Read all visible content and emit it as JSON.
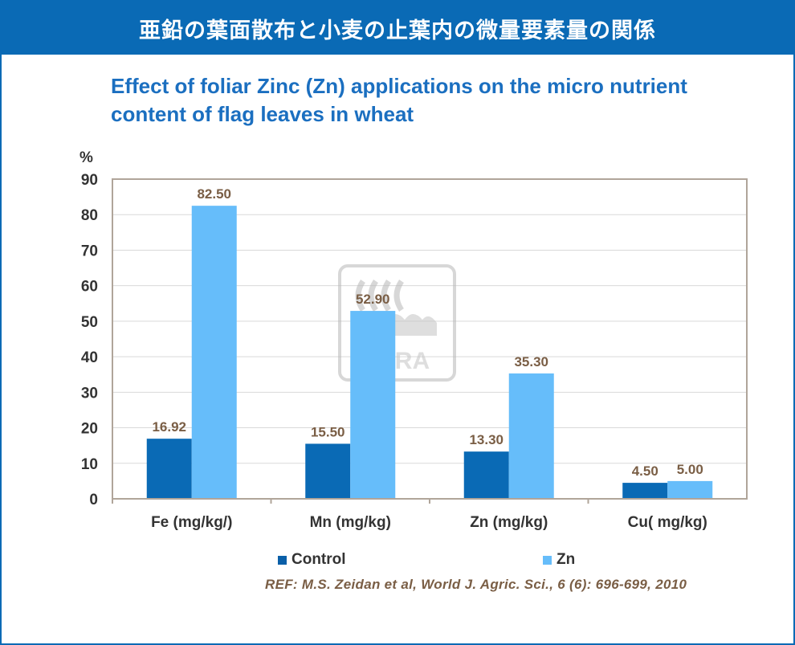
{
  "banner": {
    "title": "亜鉛の葉面散布と小麦の止葉内の微量要素量の関係"
  },
  "chart_data": {
    "type": "bar",
    "title": "Effect of foliar Zinc (Zn) applications on the micro nutrient content of flag leaves in wheat",
    "ylabel": "%",
    "ylim": [
      0,
      90
    ],
    "yticks": [
      0,
      10,
      20,
      30,
      40,
      50,
      60,
      70,
      80,
      90
    ],
    "grid": true,
    "legend_position": "bottom",
    "categories": [
      "Fe (mg/kg/)",
      "Mn (mg/kg)",
      "Zn (mg/kg)",
      "Cu( mg/kg)"
    ],
    "series": [
      {
        "name": "Control",
        "values": [
          16.92,
          15.5,
          13.3,
          4.5
        ],
        "labels": [
          "16.92",
          "15.50",
          "13.30",
          "4.50"
        ],
        "color": "#0a6ab5"
      },
      {
        "name": "Zn",
        "values": [
          82.5,
          52.9,
          35.3,
          5.0
        ],
        "labels": [
          "82.50",
          "52.90",
          "35.30",
          "5.00"
        ],
        "color": "#66bdfa"
      }
    ]
  },
  "watermark": {
    "text": "YARA",
    "icon": "yara-logo-icon"
  },
  "reference": "REF: M.S. Zeidan et al, World J. Agric. Sci., 6 (6): 696-699, 2010",
  "colors": {
    "brand": "#0a6ab5",
    "title": "#1b6fc0",
    "value_label": "#7a5e45",
    "axis": "#b0a59a"
  }
}
